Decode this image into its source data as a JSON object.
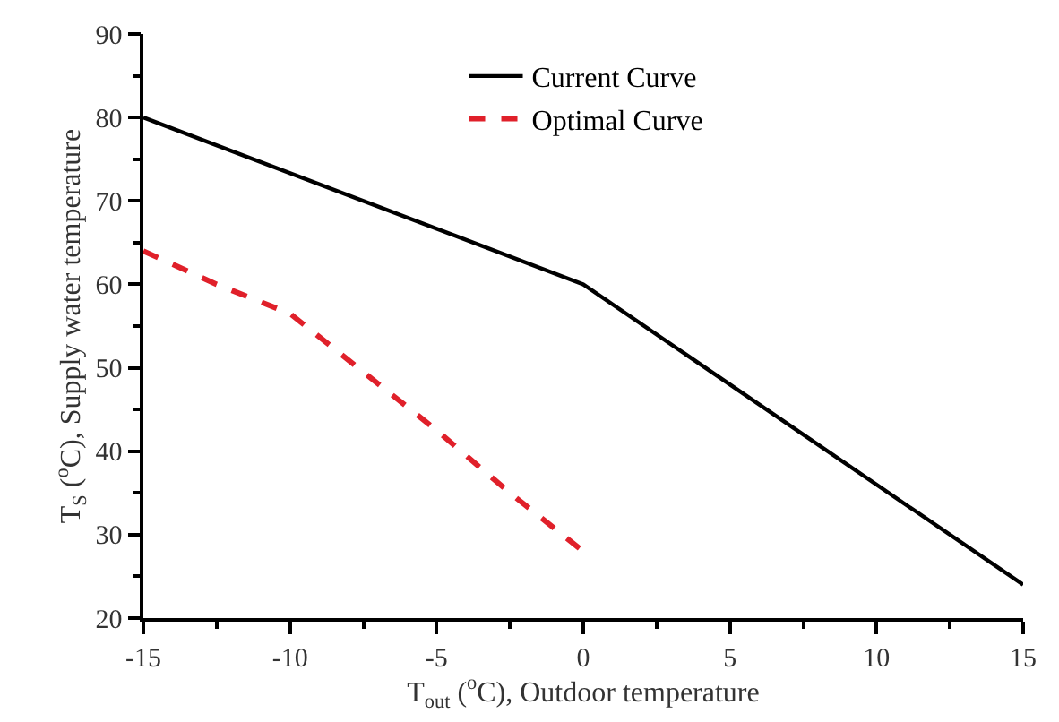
{
  "chart_data": {
    "type": "line",
    "xlabel": "T$_{out}$ ($^{o}$C), Outdoor temperature",
    "ylabel": "T$_{S}$ ($^{o}$C), Supply water temperature",
    "series": [
      {
        "name": "Current Curve",
        "color": "#000000",
        "line_style": "solid",
        "x": [
          -15,
          0,
          15
        ],
        "values": [
          80,
          60,
          24
        ]
      },
      {
        "name": "Optimal Curve",
        "color": "#e0202a",
        "line_style": "dashed",
        "x": [
          -15,
          -12.5,
          -10,
          -7.5,
          -5,
          -2.5,
          0
        ],
        "values": [
          64,
          60,
          56.5,
          49.5,
          42.5,
          35,
          28
        ]
      }
    ],
    "xlim": [
      -15,
      15
    ],
    "xticks": [
      -15,
      -10,
      -5,
      0,
      5,
      10,
      15
    ],
    "ylim": [
      20,
      90
    ],
    "yticks": [
      20,
      30,
      40,
      50,
      60,
      70,
      80,
      90
    ],
    "legend": "top right",
    "marker": "none"
  }
}
